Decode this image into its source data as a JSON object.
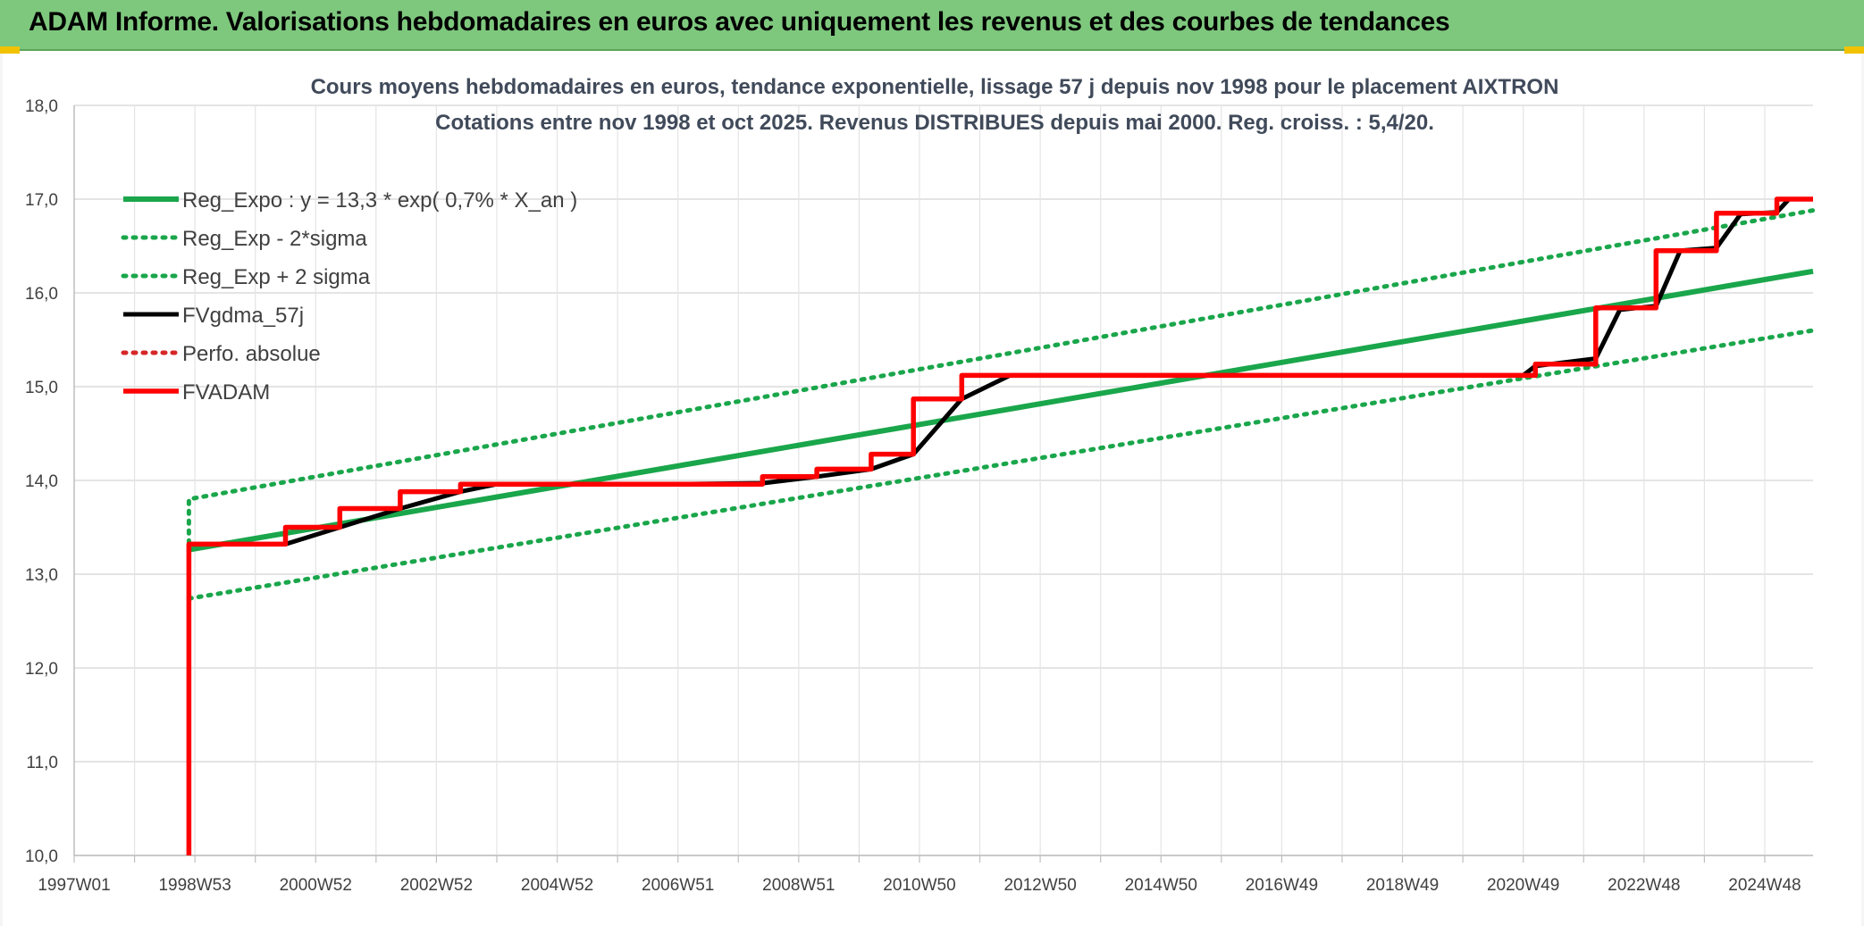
{
  "header": {
    "title": "ADAM Informe. Valorisations hebdomadaires en euros avec uniquement les revenus et des courbes de tendances"
  },
  "chart_data": {
    "type": "line",
    "title": "Cours moyens hebdomadaires en euros, tendance exponentielle, lissage 57 j depuis nov 1998 pour le placement AIXTRON",
    "subtitle": "Cotations entre nov 1998 et oct 2025. Revenus DISTRIBUES depuis mai 2000. Reg. croiss. : 5,4/20.",
    "xlabel": "",
    "ylabel": "",
    "xlim": [
      1997.0,
      2025.8
    ],
    "ylim": [
      10,
      18
    ],
    "y_ticks": [
      10,
      11,
      12,
      13,
      14,
      15,
      16,
      17,
      18
    ],
    "y_tick_labels": [
      "10,0",
      "11,0",
      "12,0",
      "13,0",
      "14,0",
      "15,0",
      "16,0",
      "17,0",
      "18,0"
    ],
    "x_ticks": [
      1997.0,
      2000.0,
      2002.0,
      2004.0,
      2006.0,
      2008.0,
      2010.0,
      2012.0,
      2014.0,
      2016.0,
      2018.0,
      2020.0,
      2022.0,
      2024.0
    ],
    "x_labeled_ticks": [
      {
        "x": 1997.0,
        "label": "1997W01"
      },
      {
        "x": 1999.0,
        "label": "1998W53"
      },
      {
        "x": 2001.0,
        "label": "2000W52"
      },
      {
        "x": 2003.0,
        "label": "2002W52"
      },
      {
        "x": 2005.0,
        "label": "2004W52"
      },
      {
        "x": 2007.0,
        "label": "2006W51"
      },
      {
        "x": 2009.0,
        "label": "2008W51"
      },
      {
        "x": 2011.0,
        "label": "2010W50"
      },
      {
        "x": 2013.0,
        "label": "2012W50"
      },
      {
        "x": 2015.0,
        "label": "2014W50"
      },
      {
        "x": 2017.0,
        "label": "2016W49"
      },
      {
        "x": 2019.0,
        "label": "2018W49"
      },
      {
        "x": 2021.0,
        "label": "2020W49"
      },
      {
        "x": 2023.0,
        "label": "2022W48"
      },
      {
        "x": 2025.0,
        "label": "2024W48"
      }
    ],
    "grid": true,
    "legend_position": "top-left",
    "series": [
      {
        "name": "Reg_Expo : y = 13,3 * exp( 0,7% *  X_an )",
        "style": "solid",
        "color": "#1aa64b",
        "x": [
          1998.9,
          2025.8
        ],
        "y": [
          13.26,
          16.23
        ]
      },
      {
        "name": "Reg_Exp - 2*sigma",
        "style": "dotted",
        "color": "#1aa64b",
        "x": [
          1998.9,
          2025.8
        ],
        "y": [
          12.74,
          15.6
        ]
      },
      {
        "name": "Reg_Exp + 2 sigma",
        "style": "dotted",
        "color": "#1aa64b",
        "x": [
          1998.9,
          1998.9,
          2025.8
        ],
        "y": [
          13.33,
          13.8,
          16.88
        ]
      },
      {
        "name": "FVgdma_57j",
        "style": "smooth",
        "color": "#000000",
        "x": [
          1998.9,
          1998.9,
          2000.5,
          2001.4,
          2002.4,
          2003.4,
          2004.0,
          2005.0,
          2006.0,
          2007.0,
          2008.4,
          2009.3,
          2010.2,
          2010.9,
          2011.7,
          2012.5,
          2014.0,
          2016.0,
          2018.0,
          2020.0,
          2021.0,
          2021.2,
          2022.2,
          2022.6,
          2023.2,
          2023.6,
          2024.2,
          2024.6,
          2025.2,
          2025.4,
          2025.8
        ],
        "y": [
          10.0,
          13.32,
          13.32,
          13.5,
          13.7,
          13.88,
          13.96,
          13.96,
          13.96,
          13.96,
          13.97,
          14.04,
          14.12,
          14.28,
          14.87,
          15.12,
          15.12,
          15.12,
          15.12,
          15.12,
          15.12,
          15.22,
          15.3,
          15.82,
          15.86,
          16.45,
          16.48,
          16.84,
          16.86,
          17.0,
          17.0
        ]
      },
      {
        "name": "Perfo. absolue",
        "style": "dotted",
        "color": "#d62728",
        "x": [],
        "y": []
      },
      {
        "name": "FVADAM",
        "style": "step",
        "color": "#ff0000",
        "x": [
          1998.9,
          1998.9,
          2000.5,
          2000.5,
          2001.4,
          2001.4,
          2002.4,
          2002.4,
          2003.4,
          2003.4,
          2008.4,
          2008.4,
          2009.3,
          2009.3,
          2010.2,
          2010.2,
          2010.9,
          2010.9,
          2011.7,
          2011.7,
          2021.2,
          2021.2,
          2022.2,
          2022.2,
          2023.2,
          2023.2,
          2024.2,
          2024.2,
          2025.2,
          2025.2,
          2025.8
        ],
        "y": [
          10.0,
          13.32,
          13.32,
          13.5,
          13.5,
          13.7,
          13.7,
          13.88,
          13.88,
          13.96,
          13.96,
          14.04,
          14.04,
          14.12,
          14.12,
          14.28,
          14.28,
          14.87,
          14.87,
          15.12,
          15.12,
          15.24,
          15.24,
          15.84,
          15.84,
          16.45,
          16.45,
          16.85,
          16.85,
          17.0,
          17.0
        ]
      }
    ]
  }
}
